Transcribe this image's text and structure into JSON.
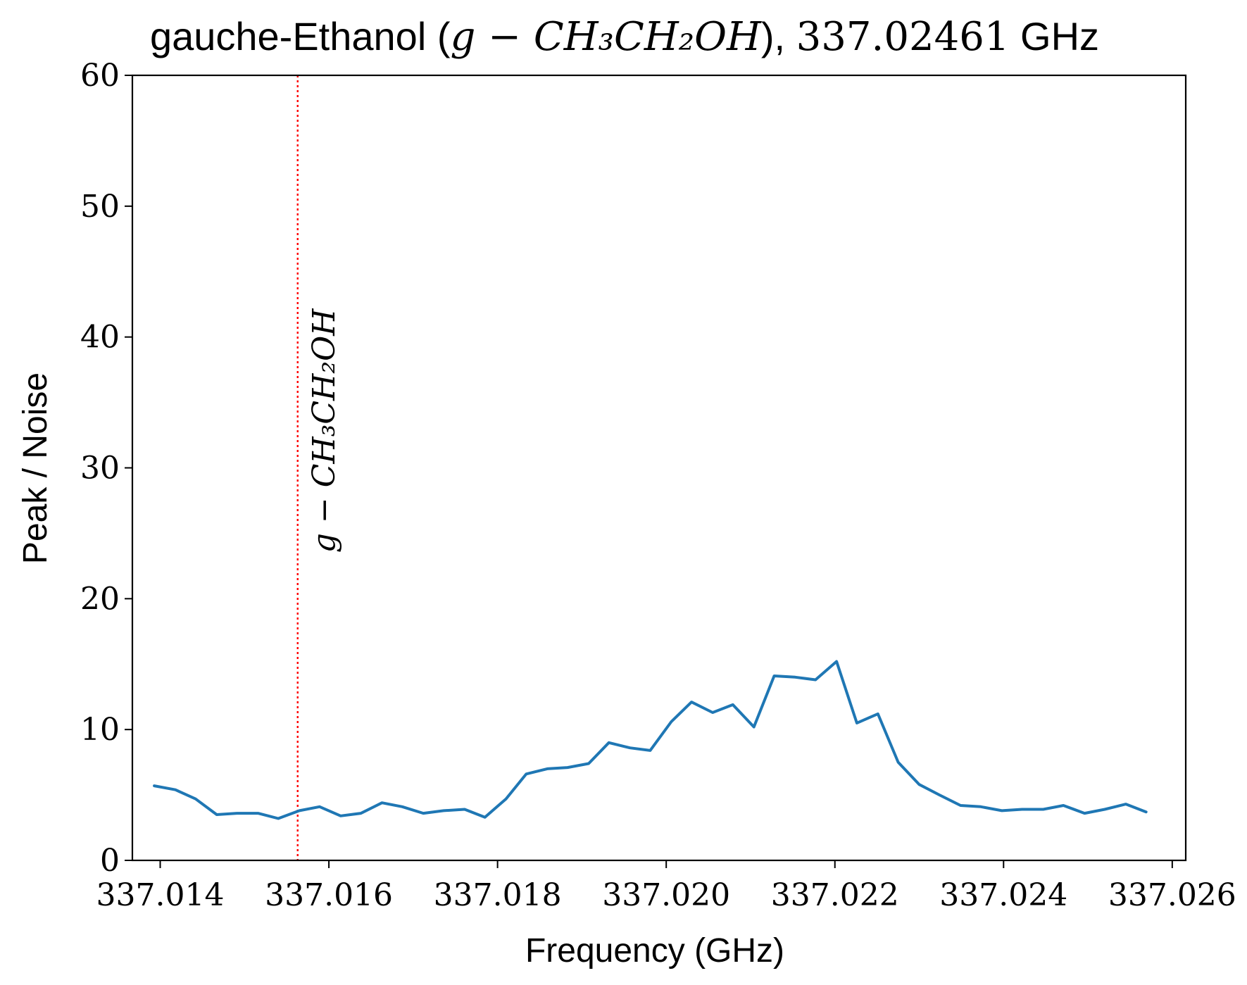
{
  "chart_data": {
    "type": "line",
    "title": {
      "prefix": "gauche-Ethanol (",
      "formula": "g − CH₃CH₂OH",
      "middle": "), ",
      "frequency": "337.02461",
      "suffix": " GHz"
    },
    "xlabel": "Frequency (GHz)",
    "ylabel": "Peak / Noise",
    "xlim": [
      337.01367,
      337.02616
    ],
    "ylim": [
      0,
      60
    ],
    "x_ticks": [
      337.014,
      337.016,
      337.018,
      337.02,
      337.022,
      337.024,
      337.026
    ],
    "x_tick_labels": [
      "337.014",
      "337.016",
      "337.018",
      "337.020",
      "337.022",
      "337.024",
      "337.026"
    ],
    "y_ticks": [
      0,
      10,
      20,
      30,
      40,
      50,
      60
    ],
    "y_tick_labels": [
      "0",
      "10",
      "20",
      "30",
      "40",
      "50",
      "60"
    ],
    "grid": false,
    "series": [
      {
        "color": "#1f77b4",
        "x": [
          337.01393,
          337.01418,
          337.01442,
          337.01467,
          337.01491,
          337.01516,
          337.0154,
          337.01565,
          337.01589,
          337.01614,
          337.01638,
          337.01663,
          337.01687,
          337.01712,
          337.01736,
          337.01761,
          337.01785,
          337.0181,
          337.01834,
          337.01859,
          337.01883,
          337.01908,
          337.01932,
          337.01957,
          337.01981,
          337.02006,
          337.0203,
          337.02055,
          337.02079,
          337.02104,
          337.02128,
          337.02153,
          337.02177,
          337.02202,
          337.02226,
          337.02251,
          337.02275,
          337.023,
          337.02324,
          337.02349,
          337.02373,
          337.02398,
          337.02422,
          337.02447,
          337.02471,
          337.02496,
          337.0252,
          337.02545,
          337.02569
        ],
        "values": [
          5.7,
          5.4,
          4.7,
          3.5,
          3.6,
          3.6,
          3.2,
          3.8,
          4.1,
          3.4,
          3.6,
          4.4,
          4.1,
          3.6,
          3.8,
          3.9,
          3.3,
          4.7,
          6.6,
          7.0,
          7.1,
          7.4,
          9.0,
          8.6,
          8.4,
          10.6,
          12.1,
          11.3,
          11.9,
          10.2,
          14.1,
          14.0,
          13.8,
          15.2,
          10.5,
          11.2,
          7.5,
          5.8,
          5.0,
          4.2,
          4.1,
          3.8,
          3.9,
          3.9,
          4.2,
          3.6,
          3.9,
          4.3,
          3.7
        ]
      }
    ],
    "annotations": [
      {
        "type": "vline",
        "x": 337.01563,
        "color": "#ff0000",
        "style": "dotted",
        "label": "g − CH₃CH₂OH"
      }
    ]
  }
}
